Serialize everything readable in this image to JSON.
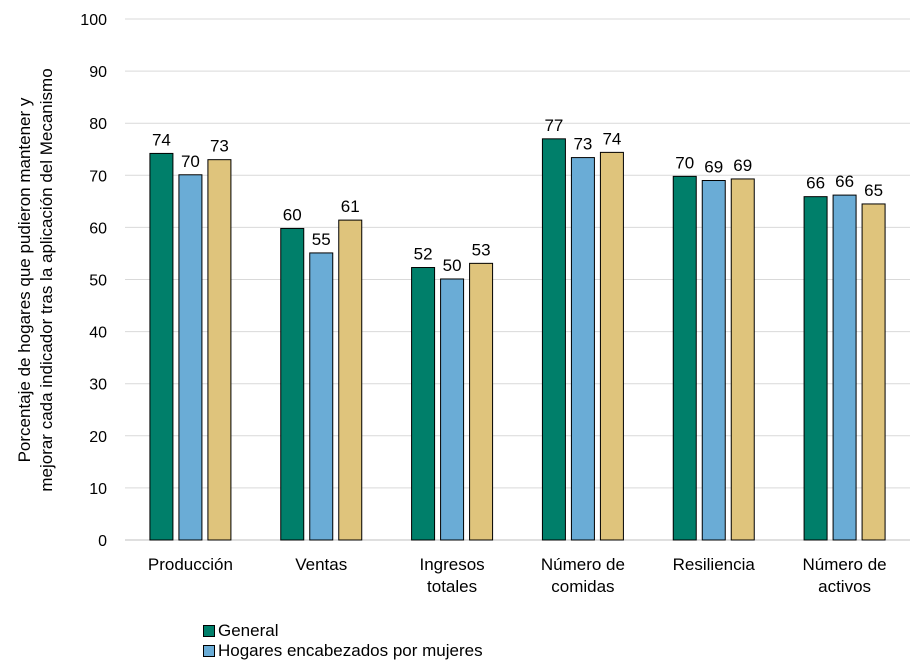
{
  "chart_data": {
    "type": "bar",
    "categories": [
      [
        "Producción"
      ],
      [
        "Ventas"
      ],
      [
        "Ingresos",
        "totales"
      ],
      [
        "Número de",
        "comidas"
      ],
      [
        "Resiliencia"
      ],
      [
        "Número de",
        "activos"
      ]
    ],
    "ylabel": [
      "Porcentaje de hogares que pudieron mantener y",
      "mejorar cada indicador tras la aplicación del Mecanismo"
    ],
    "ylim": [
      0,
      100
    ],
    "yticks": [
      0,
      10,
      20,
      30,
      40,
      50,
      60,
      70,
      80,
      90,
      100
    ],
    "grid": true,
    "legend_position": "bottom",
    "series": [
      {
        "name": "General",
        "color": "#007f6a",
        "values": [
          74.2,
          59.8,
          52.3,
          77.0,
          69.8,
          65.9
        ],
        "labels": [
          "74",
          "60",
          "52",
          "77",
          "70",
          "66"
        ]
      },
      {
        "name": "Hogares encabezados por mujeres",
        "color": "#6aacd6",
        "values": [
          70.1,
          55.1,
          50.1,
          73.4,
          69.0,
          66.2
        ],
        "labels": [
          "70",
          "55",
          "50",
          "73",
          "69",
          "66"
        ]
      },
      {
        "name": "",
        "color": "#dfc47c",
        "values": [
          73.0,
          61.4,
          53.1,
          74.4,
          69.3,
          64.5
        ],
        "labels": [
          "73",
          "61",
          "53",
          "74",
          "69",
          "65"
        ]
      }
    ]
  }
}
